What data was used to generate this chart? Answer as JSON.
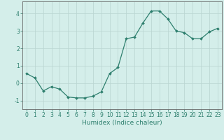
{
  "x": [
    0,
    1,
    2,
    3,
    4,
    5,
    6,
    7,
    8,
    9,
    10,
    11,
    12,
    13,
    14,
    15,
    16,
    17,
    18,
    19,
    20,
    21,
    22,
    23
  ],
  "y": [
    0.55,
    0.3,
    -0.45,
    -0.2,
    -0.35,
    -0.8,
    -0.85,
    -0.85,
    -0.75,
    -0.5,
    0.55,
    0.9,
    2.55,
    2.65,
    3.45,
    4.15,
    4.15,
    3.7,
    3.0,
    2.9,
    2.55,
    2.55,
    2.95,
    3.15
  ],
  "line_color": "#2e7f6e",
  "marker": "D",
  "marker_size": 2.0,
  "bg_color": "#d4eeea",
  "grid_color": "#b8d4d0",
  "xlabel": "Humidex (Indice chaleur)",
  "ylim": [
    -1.5,
    4.7
  ],
  "xlim": [
    -0.5,
    23.5
  ],
  "yticks": [
    -1,
    0,
    1,
    2,
    3,
    4
  ],
  "xticks": [
    0,
    1,
    2,
    3,
    4,
    5,
    6,
    7,
    8,
    9,
    10,
    11,
    12,
    13,
    14,
    15,
    16,
    17,
    18,
    19,
    20,
    21,
    22,
    23
  ],
  "tick_color": "#2e7f6e",
  "axis_color": "#666666",
  "label_fontsize": 6.5,
  "tick_fontsize": 5.5,
  "linewidth": 0.9
}
